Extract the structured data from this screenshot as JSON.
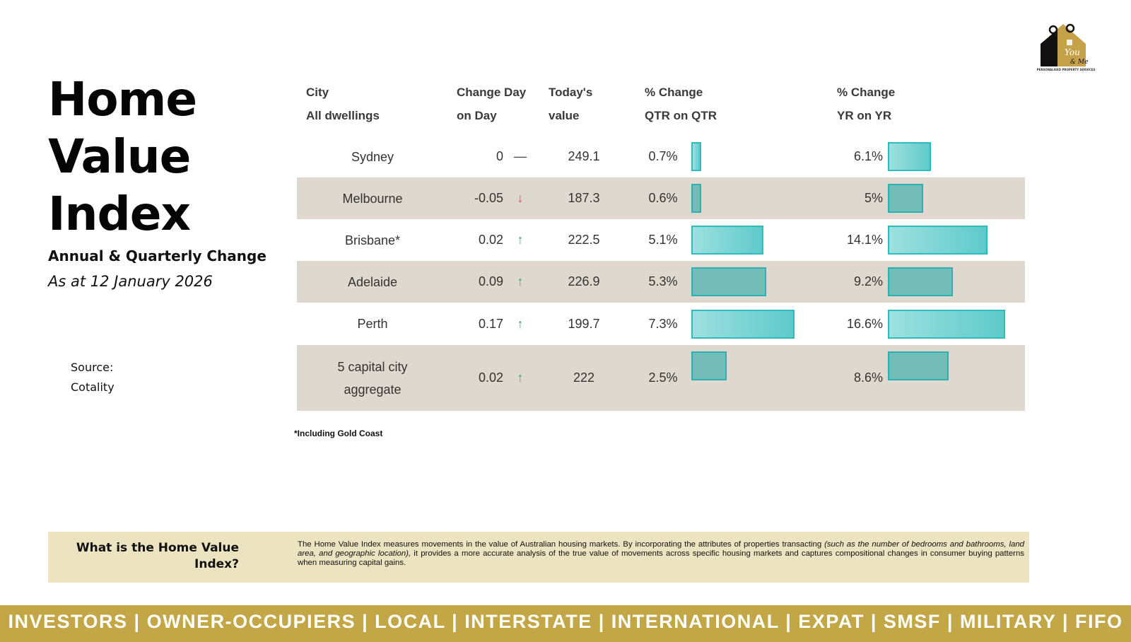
{
  "logo": {
    "line1": "You",
    "line2": "& Me",
    "tagline": "PERSONALISED PROPERTY SERVICES"
  },
  "title": {
    "line1": "Home",
    "line2": "Value",
    "line3": "Index"
  },
  "subtitle": "Annual & Quarterly Change",
  "as_at": "As at 12 January 2026",
  "source": {
    "label": "Source:",
    "value": "Cotality"
  },
  "table": {
    "headers": {
      "city": [
        "City",
        "All dwellings"
      ],
      "change": [
        "Change Day",
        "on Day"
      ],
      "value": [
        "Today's",
        "value"
      ],
      "qtr": [
        "% Change",
        "QTR on QTR"
      ],
      "yr": [
        "% Change",
        "YR on YR"
      ]
    },
    "rows": [
      {
        "city": "Sydney",
        "change": "0",
        "direction": "flat",
        "arrow": "—",
        "value": "249.1",
        "qtr": "0.7%",
        "qtr_num": 0.7,
        "yr": "6.1%",
        "yr_num": 6.1
      },
      {
        "city": "Melbourne",
        "change": "-0.05",
        "direction": "down",
        "arrow": "↓",
        "value": "187.3",
        "qtr": "0.6%",
        "qtr_num": 0.6,
        "yr": "5%",
        "yr_num": 5.0
      },
      {
        "city": "Brisbane*",
        "change": "0.02",
        "direction": "up",
        "arrow": "↑",
        "value": "222.5",
        "qtr": "5.1%",
        "qtr_num": 5.1,
        "yr": "14.1%",
        "yr_num": 14.1
      },
      {
        "city": "Adelaide",
        "change": "0.09",
        "direction": "up",
        "arrow": "↑",
        "value": "226.9",
        "qtr": "5.3%",
        "qtr_num": 5.3,
        "yr": "9.2%",
        "yr_num": 9.2
      },
      {
        "city": "Perth",
        "change": "0.17",
        "direction": "up",
        "arrow": "↑",
        "value": "199.7",
        "qtr": "7.3%",
        "qtr_num": 7.3,
        "yr": "16.6%",
        "yr_num": 16.6
      },
      {
        "city": "5 capital city aggregate",
        "city_line1": "5 capital city",
        "city_line2": "aggregate",
        "change": "0.02",
        "direction": "up",
        "arrow": "↑",
        "value": "222",
        "qtr": "2.5%",
        "qtr_num": 2.5,
        "yr": "8.6%",
        "yr_num": 8.6
      }
    ],
    "colors": {
      "bar_border": "#2cbcbc",
      "bar_light": "#7fd5d5",
      "bar_dark": "#73bcb7",
      "row_shade": "#ded8ce",
      "up": "#3aa07a",
      "down": "#e0485a"
    }
  },
  "footnote": "*Including Gold Coast",
  "what": {
    "question": "What is the Home Value Index?",
    "answer_part1": "The Home Value Index measures movements in the value of Australian housing markets. By incorporating the attributes of properties transacting ",
    "answer_italic": "(such as the number of bedrooms and bathrooms, land area, and geographic location),",
    "answer_part2": " it provides a more accurate analysis of the true value of movements across specific housing markets and captures compositional changes in consumer buying patterns when measuring capital gains."
  },
  "banner": "INVESTORS | OWNER-OCCUPIERS | LOCAL | INTERSTATE | INTERNATIONAL | EXPAT | SMSF | MILITARY | FIFO"
}
